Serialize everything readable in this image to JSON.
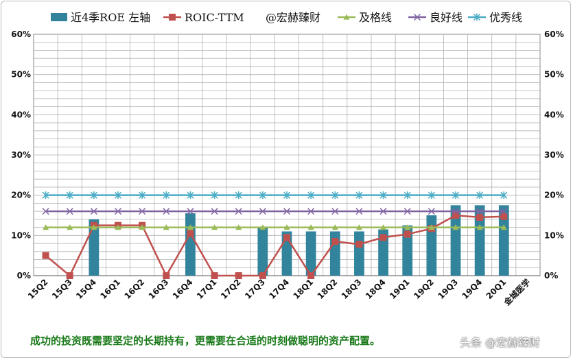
{
  "chart_data": {
    "type": "bar+line",
    "categories": [
      "15Q2",
      "15Q3",
      "15Q4",
      "16Q1",
      "16Q2",
      "16Q3",
      "16Q4",
      "17Q1",
      "17Q2",
      "17Q3",
      "17Q4",
      "18Q1",
      "18Q2",
      "18Q3",
      "18Q4",
      "19Q1",
      "19Q2",
      "19Q3",
      "19Q4",
      "20Q1"
    ],
    "extra_category_label": "金城医学",
    "legend": [
      {
        "name": "近4季ROE 左轴",
        "kind": "bar",
        "color": "#31849b"
      },
      {
        "name": "ROIC-TTM",
        "kind": "line-square",
        "color": "#c0504d"
      },
      {
        "name": "@宏赫臻财",
        "kind": "text",
        "color": "#111111"
      },
      {
        "name": "及格线",
        "kind": "line-triangle",
        "color": "#9bbb59"
      },
      {
        "name": "良好线",
        "kind": "line-x",
        "color": "#8064a2"
      },
      {
        "name": "优秀线",
        "kind": "line-star",
        "color": "#4bacc6"
      }
    ],
    "series": [
      {
        "name": "近4季ROE 左轴",
        "type": "bar",
        "values": [
          null,
          null,
          14,
          null,
          null,
          null,
          15.5,
          null,
          null,
          12,
          11,
          11,
          11,
          11,
          11.5,
          12.5,
          15,
          17.5,
          17.5,
          17.5
        ]
      },
      {
        "name": "ROIC-TTM",
        "type": "line",
        "values": [
          5,
          0,
          12.5,
          12.5,
          12.5,
          0,
          10.5,
          0,
          0,
          0,
          9.5,
          0,
          8.5,
          7.8,
          9.5,
          10.3,
          11.7,
          15,
          14.5,
          14.7
        ]
      },
      {
        "name": "及格线",
        "type": "line",
        "values": [
          12,
          12,
          12,
          12,
          12,
          12,
          12,
          12,
          12,
          12,
          12,
          12,
          12,
          12,
          12,
          12,
          12,
          12,
          12,
          12
        ]
      },
      {
        "name": "良好线",
        "type": "line",
        "values": [
          16,
          16,
          16,
          16,
          16,
          16,
          16,
          16,
          16,
          16,
          16,
          16,
          16,
          16,
          16,
          16,
          16,
          16,
          16,
          16
        ]
      },
      {
        "name": "优秀线",
        "type": "line",
        "values": [
          20,
          20,
          20,
          20,
          20,
          20,
          20,
          20,
          20,
          20,
          20,
          20,
          20,
          20,
          20,
          20,
          20,
          20,
          20,
          20
        ]
      }
    ],
    "ylim": [
      0,
      60
    ],
    "yticks": [
      "0%",
      "10%",
      "20%",
      "30%",
      "40%",
      "50%",
      "60%"
    ],
    "y2ticks": [
      "0%",
      "10%",
      "20%",
      "30%",
      "40%",
      "50%",
      "60%"
    ],
    "grid": true,
    "legend_position": "top"
  },
  "footer": {
    "slogan": "成功的投资既需要坚定的长期持有，更需要在合适的时刻做聪明的资产配置。",
    "watermark": "头条 @宏赫臻财"
  }
}
